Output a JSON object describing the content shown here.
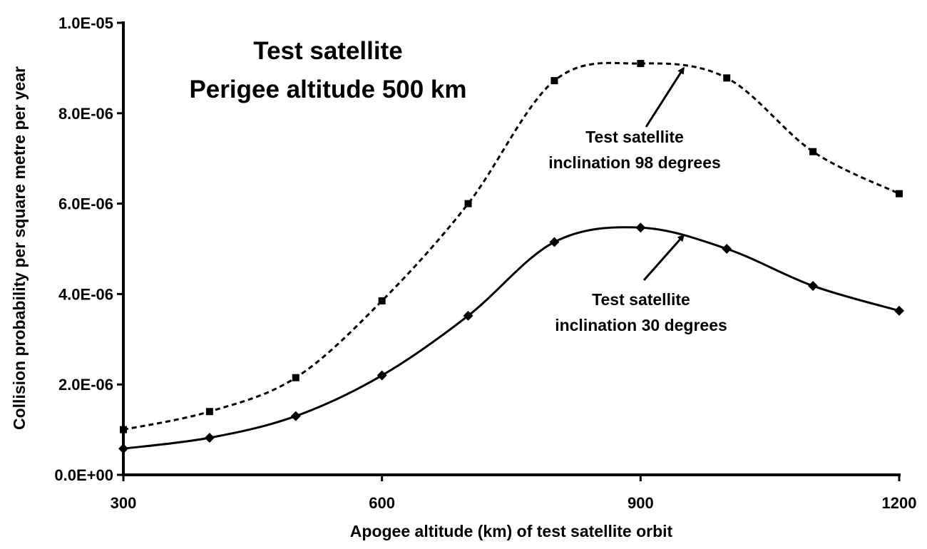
{
  "chart_data": {
    "type": "line",
    "title": [
      "Test satellite",
      "Perigee altitude 500 km"
    ],
    "xlabel": "Apogee altitude (km) of test satellite orbit",
    "ylabel": "Collision probability per square metre per year",
    "xlim": [
      300,
      1200
    ],
    "ylim": [
      0,
      1e-05
    ],
    "x_ticks": [
      300,
      600,
      900,
      1200
    ],
    "x_tick_labels": [
      "300",
      "600",
      "900",
      "1200"
    ],
    "y_ticks": [
      0,
      2e-06,
      4e-06,
      6e-06,
      8e-06,
      1e-05
    ],
    "y_tick_labels": [
      "0.0E+00",
      "2.0E-06",
      "4.0E-06",
      "6.0E-06",
      "8.0E-06",
      "1.0E-05"
    ],
    "grid": false,
    "series": [
      {
        "style": "dashed",
        "marker": "square",
        "x": [
          300,
          400,
          500,
          600,
          700,
          800,
          900,
          1000,
          1100,
          1200
        ],
        "y": [
          1e-06,
          1.4e-06,
          2.15e-06,
          3.85e-06,
          6e-06,
          8.72e-06,
          9.1e-06,
          8.78e-06,
          7.15e-06,
          6.22e-06
        ]
      },
      {
        "style": "solid",
        "marker": "diamond",
        "x": [
          300,
          400,
          500,
          600,
          700,
          800,
          900,
          1000,
          1100,
          1200
        ],
        "y": [
          5.8e-07,
          8.2e-07,
          1.3e-06,
          2.2e-06,
          3.52e-06,
          5.15e-06,
          5.47e-06,
          5e-06,
          4.18e-06,
          3.63e-06
        ]
      }
    ],
    "annotations": [
      {
        "lines": [
          "Test satellite",
          "inclination 98 degrees"
        ],
        "points_to": {
          "x": 950,
          "y": 9e-06
        }
      },
      {
        "lines": [
          "Test satellite",
          "inclination 30 degrees"
        ],
        "points_to": {
          "x": 950,
          "y": 5.3e-06
        }
      }
    ]
  }
}
